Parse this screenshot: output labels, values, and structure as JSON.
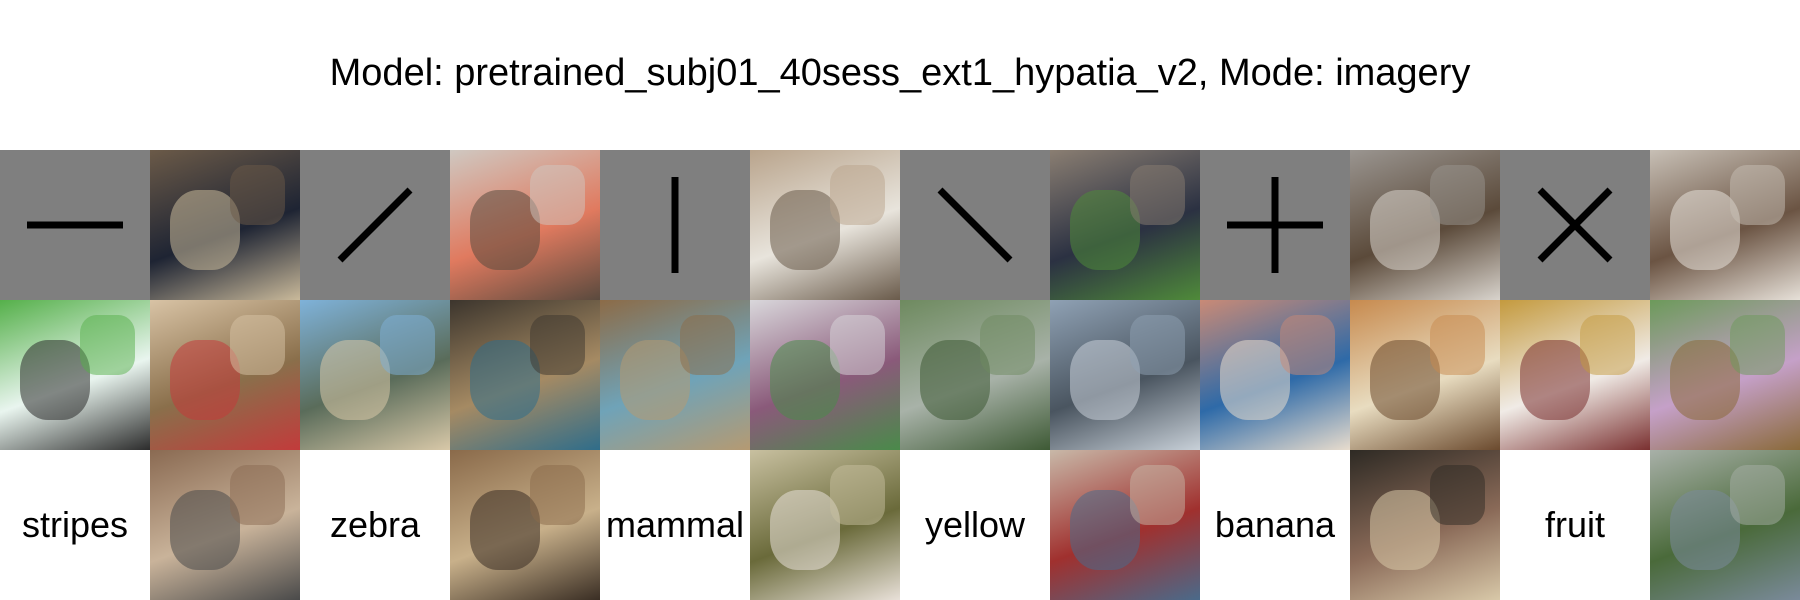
{
  "title": "Model: pretrained_subj01_40sess_ext1_hypatia_v2, Mode: imagery",
  "rows": {
    "stimuli": [
      {
        "icon": "horizontal-line-icon"
      },
      {
        "icon": "diagonal-line-icon"
      },
      {
        "icon": "vertical-line-icon"
      },
      {
        "icon": "antidiagonal-line-icon"
      },
      {
        "icon": "plus-icon"
      },
      {
        "icon": "cross-icon"
      }
    ],
    "words": [
      "stripes",
      "zebra",
      "mammal",
      "yellow",
      "banana",
      "fruit"
    ]
  },
  "images": {
    "row1": [
      {
        "name": "interior-room-photo",
        "colors": [
          "#6b5a48",
          "#1e2433",
          "#c9b99a"
        ]
      },
      {
        "name": "spice-jars-photo",
        "colors": [
          "#cfc8c1",
          "#e07a5f",
          "#5a4a3e"
        ]
      },
      {
        "name": "man-standing-photo",
        "colors": [
          "#b9a48c",
          "#e8e4dc",
          "#6a5b4b"
        ]
      },
      {
        "name": "loft-interior-photo",
        "colors": [
          "#8a7e72",
          "#2b3142",
          "#4f8a3a"
        ]
      },
      {
        "name": "man-in-office-photo",
        "colors": [
          "#9a9590",
          "#5b4a3a",
          "#d8d3cc"
        ]
      },
      {
        "name": "animals-grazing-photo",
        "colors": [
          "#c7bfb5",
          "#6b5443",
          "#e6e0d8"
        ]
      }
    ],
    "row2": [
      {
        "name": "surfer-wave-photo",
        "colors": [
          "#55b04a",
          "#e9f5ef",
          "#2c2c2c"
        ]
      },
      {
        "name": "people-reading-photo",
        "colors": [
          "#d8c3a5",
          "#8a6f4b",
          "#c23b3b"
        ]
      },
      {
        "name": "boats-bay-photo",
        "colors": [
          "#7fb2d9",
          "#5a6c5a",
          "#d8c8a8"
        ]
      },
      {
        "name": "market-stalls-photo",
        "colors": [
          "#3c352d",
          "#a58a63",
          "#2f6d8a"
        ]
      },
      {
        "name": "bird-ground-photo",
        "colors": [
          "#8c6b47",
          "#6fa3b8",
          "#b59a72"
        ]
      },
      {
        "name": "building-model-photo",
        "colors": [
          "#d9d7db",
          "#8a5a7a",
          "#4a8a4a"
        ]
      },
      {
        "name": "river-valley-photo",
        "colors": [
          "#6e8a5f",
          "#a8b2a8",
          "#3e5a35"
        ]
      },
      {
        "name": "modern-building-photo",
        "colors": [
          "#8fa1b4",
          "#4a5560",
          "#c8d0d8"
        ]
      },
      {
        "name": "donuts-photo",
        "colors": [
          "#c98a76",
          "#2e6aa8",
          "#e8dccd"
        ]
      },
      {
        "name": "cookies-pastries-photo",
        "colors": [
          "#c78a4e",
          "#e8dcc0",
          "#6b4a2e"
        ]
      },
      {
        "name": "floral-dresses-photo",
        "colors": [
          "#c49a3e",
          "#f0ebe6",
          "#7a3030"
        ]
      },
      {
        "name": "abstract-garden-photo",
        "colors": [
          "#6c9a5a",
          "#c5a0c8",
          "#8a6a3a"
        ]
      }
    ],
    "row3": [
      {
        "name": "wooden-logs-photo",
        "colors": [
          "#8a6a52",
          "#c9b39a",
          "#4a4a4a"
        ]
      },
      {
        "name": "crowd-gathering-photo",
        "colors": [
          "#8a6a4a",
          "#c8b08a",
          "#3a2e24"
        ]
      },
      {
        "name": "flowers-vase-photo",
        "colors": [
          "#c8c0a0",
          "#6a6a3a",
          "#e8e0d8"
        ]
      },
      {
        "name": "store-shelves-photo",
        "colors": [
          "#c8b8a8",
          "#a0302e",
          "#4a6a8a"
        ]
      },
      {
        "name": "building-night-photo",
        "colors": [
          "#2e2a24",
          "#8a6a58",
          "#d8c8a8"
        ]
      },
      {
        "name": "tree-courtyard-photo",
        "colors": [
          "#a8b0a8",
          "#4a6a3a",
          "#7a8a9a"
        ]
      }
    ]
  }
}
